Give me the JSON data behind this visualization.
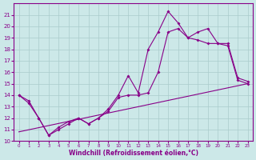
{
  "xlabel": "Windchill (Refroidissement éolien,°C)",
  "bg_color": "#cce8e8",
  "grid_color": "#aacccc",
  "line_color": "#880088",
  "xlim": [
    -0.5,
    23.5
  ],
  "ylim": [
    10,
    22
  ],
  "yticks": [
    10,
    11,
    12,
    13,
    14,
    15,
    16,
    17,
    18,
    19,
    20,
    21
  ],
  "xticks": [
    0,
    1,
    2,
    3,
    4,
    5,
    6,
    7,
    8,
    9,
    10,
    11,
    12,
    13,
    14,
    15,
    16,
    17,
    18,
    19,
    20,
    21,
    22,
    23
  ],
  "line1_x": [
    0,
    1,
    2,
    3,
    4,
    5,
    6,
    7,
    8,
    9,
    10,
    11,
    12,
    13,
    14,
    15,
    16,
    17,
    18,
    19,
    20,
    21,
    22,
    23
  ],
  "line1_y": [
    14.0,
    13.5,
    12.0,
    10.5,
    11.2,
    11.7,
    12.0,
    11.5,
    12.0,
    12.8,
    14.0,
    15.7,
    14.2,
    18.0,
    19.5,
    21.3,
    20.3,
    19.0,
    19.5,
    19.8,
    18.5,
    18.5,
    15.5,
    15.2
  ],
  "line2_x": [
    0,
    1,
    2,
    3,
    4,
    5,
    6,
    7,
    8,
    9,
    10,
    11,
    12,
    13,
    14,
    15,
    16,
    17,
    18,
    19,
    20,
    21,
    22,
    23
  ],
  "line2_y": [
    14.0,
    13.3,
    12.0,
    10.5,
    11.0,
    11.5,
    12.0,
    11.5,
    12.0,
    12.6,
    13.8,
    14.0,
    14.0,
    14.2,
    16.0,
    19.5,
    19.8,
    19.0,
    18.8,
    18.5,
    18.5,
    18.3,
    15.3,
    15.0
  ],
  "line3_x": [
    0,
    23
  ],
  "line3_y": [
    10.8,
    15.0
  ]
}
